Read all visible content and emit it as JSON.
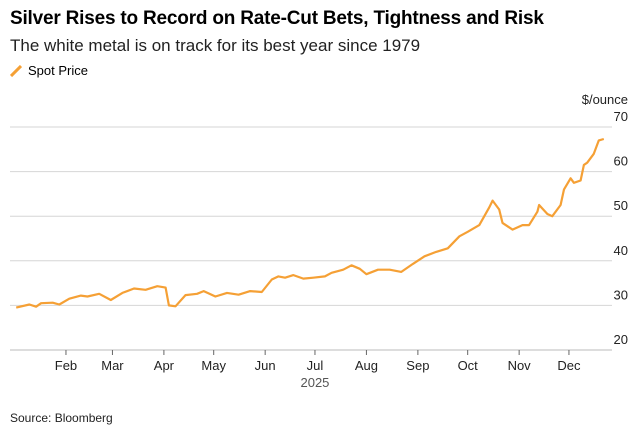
{
  "chart_data": {
    "type": "line",
    "title": "Silver Rises to Record on Rate-Cut Bets, Tightness and Risk",
    "subtitle": "The white metal is on track for its best year since 1979",
    "ylabel": "$/ounce",
    "xlabel": "2025",
    "source": "Source: Bloomberg",
    "ylim": [
      20,
      70
    ],
    "yticks": [
      20,
      30,
      40,
      50,
      60,
      70
    ],
    "xticks": [
      "Feb",
      "Mar",
      "Apr",
      "May",
      "Jun",
      "Jul",
      "Aug",
      "Sep",
      "Oct",
      "Nov",
      "Dec"
    ],
    "grid": true,
    "legend_placement": "top-left",
    "series": [
      {
        "name": "Spot Price",
        "color": "#f5a035",
        "x": [
          "2025-01-02",
          "2025-01-10",
          "2025-01-14",
          "2025-01-17",
          "2025-01-24",
          "2025-01-28",
          "2025-02-03",
          "2025-02-10",
          "2025-02-14",
          "2025-02-21",
          "2025-02-28",
          "2025-03-07",
          "2025-03-14",
          "2025-03-21",
          "2025-03-28",
          "2025-04-02",
          "2025-04-04",
          "2025-04-08",
          "2025-04-14",
          "2025-04-21",
          "2025-04-25",
          "2025-05-02",
          "2025-05-09",
          "2025-05-16",
          "2025-05-23",
          "2025-05-30",
          "2025-06-05",
          "2025-06-09",
          "2025-06-13",
          "2025-06-18",
          "2025-06-24",
          "2025-06-30",
          "2025-07-07",
          "2025-07-11",
          "2025-07-18",
          "2025-07-23",
          "2025-07-28",
          "2025-08-01",
          "2025-08-08",
          "2025-08-15",
          "2025-08-22",
          "2025-08-29",
          "2025-09-05",
          "2025-09-12",
          "2025-09-19",
          "2025-09-26",
          "2025-10-01",
          "2025-10-08",
          "2025-10-14",
          "2025-10-16",
          "2025-10-20",
          "2025-10-22",
          "2025-10-28",
          "2025-11-03",
          "2025-11-07",
          "2025-11-12",
          "2025-11-13",
          "2025-11-18",
          "2025-11-21",
          "2025-11-26",
          "2025-11-28",
          "2025-12-02",
          "2025-12-04",
          "2025-12-08",
          "2025-12-10",
          "2025-12-12",
          "2025-12-16",
          "2025-12-19",
          "2025-12-22"
        ],
        "values": [
          29.5,
          30.2,
          29.7,
          30.5,
          30.6,
          30.2,
          31.5,
          32.2,
          32.0,
          32.6,
          31.2,
          32.8,
          33.8,
          33.5,
          34.3,
          34.0,
          30.0,
          29.8,
          32.3,
          32.6,
          33.2,
          32.0,
          32.8,
          32.4,
          33.2,
          33.0,
          35.8,
          36.5,
          36.2,
          36.8,
          36.0,
          36.2,
          36.5,
          37.3,
          38.0,
          39.0,
          38.2,
          37.0,
          38.0,
          38.0,
          37.5,
          39.3,
          41.0,
          42.0,
          42.8,
          45.5,
          46.5,
          48.0,
          52.0,
          53.5,
          51.5,
          48.5,
          47.0,
          48.0,
          48.0,
          51.0,
          52.5,
          50.5,
          50.0,
          52.5,
          56.0,
          58.5,
          57.5,
          58.0,
          61.5,
          62.0,
          64.0,
          67.0,
          67.3
        ]
      }
    ]
  }
}
